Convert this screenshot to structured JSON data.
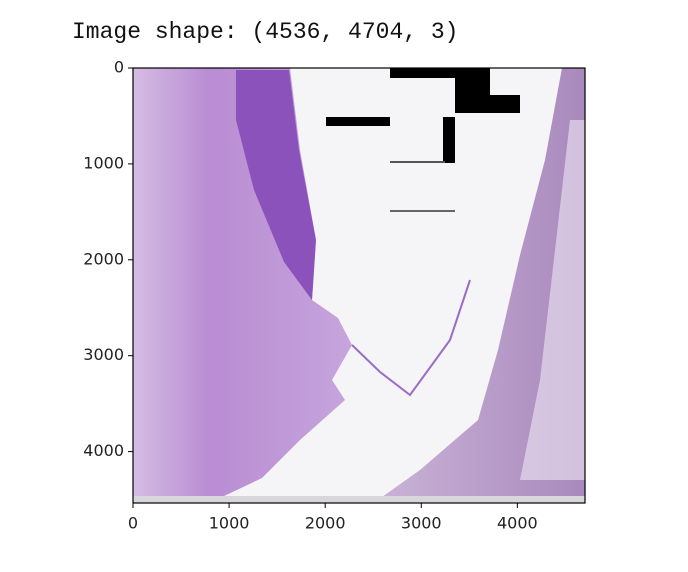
{
  "chart_data": {
    "type": "image",
    "title": "Image shape: (4536, 4704, 3)",
    "xlim": [
      0,
      4704
    ],
    "ylim": [
      4536,
      0
    ],
    "xticks": [
      0,
      1000,
      2000,
      3000,
      4000
    ],
    "yticks": [
      0,
      1000,
      2000,
      3000,
      4000
    ]
  }
}
